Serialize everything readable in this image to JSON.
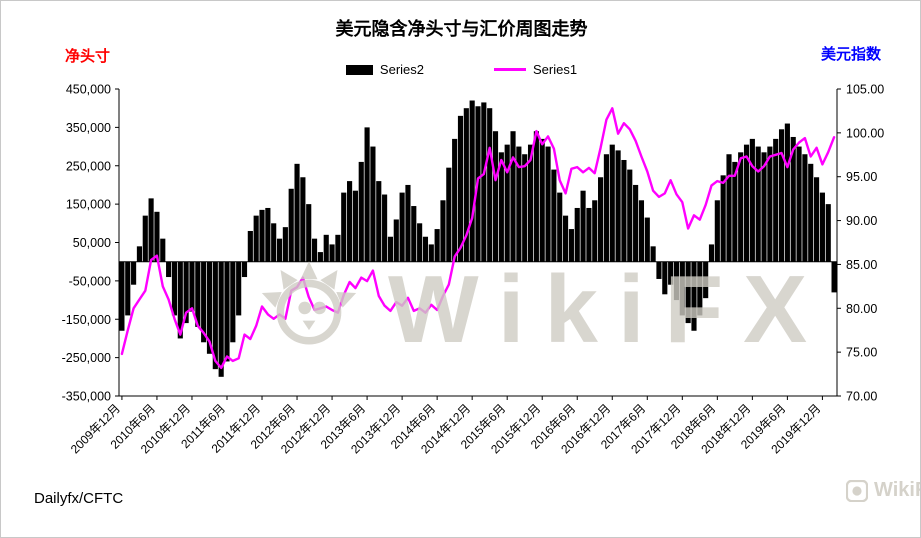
{
  "watermark": {
    "text": "WikiFX",
    "color": "#cfccc4"
  },
  "footer": {
    "source": "Dailyfx/CFTC"
  },
  "chart_data": {
    "type": "combo",
    "title": "美元隐含净头寸与汇价周图走势",
    "grid": false,
    "legend_position": "top-center",
    "left_axis": {
      "label": "净头寸",
      "color": "#ff0000",
      "ylim": [
        -350000,
        450000
      ],
      "tick_step": 100000,
      "tick_labels": [
        "450,000",
        "350,000",
        "250,000",
        "150,000",
        "50,000",
        "-50,000",
        "-150,000",
        "-250,000",
        "-350,000"
      ]
    },
    "right_axis": {
      "label": "美元指数",
      "color": "#0000ff",
      "ylim": [
        70,
        105
      ],
      "tick_step": 5,
      "tick_labels": [
        "105.00",
        "100.00",
        "95.00",
        "90.00",
        "85.00",
        "80.00",
        "75.00",
        "70.00"
      ]
    },
    "x": {
      "start": "2009-12",
      "frequency": "monthly",
      "count": 123,
      "tick_positions": [
        0,
        6,
        12,
        18,
        24,
        30,
        36,
        42,
        48,
        54,
        60,
        66,
        72,
        78,
        84,
        90,
        96,
        102,
        108,
        114,
        120
      ],
      "tick_labels": [
        "2009年12月",
        "2010年6月",
        "2010年12月",
        "2011年6月",
        "2011年12月",
        "2012年6月",
        "2012年12月",
        "2013年6月",
        "2013年12月",
        "2014年6月",
        "2014年12月",
        "2015年6月",
        "2015年12月",
        "2016年6月",
        "2016年12月",
        "2017年6月",
        "2017年12月",
        "2018年6月",
        "2018年12月",
        "2019年6月",
        "2019年12月"
      ]
    },
    "series": [
      {
        "name": "Series2",
        "type": "bar",
        "axis": "left",
        "color": "#000000",
        "values": [
          -180000,
          -140000,
          -60000,
          40000,
          120000,
          165000,
          130000,
          60000,
          -40000,
          -140000,
          -200000,
          -160000,
          -130000,
          -170000,
          -210000,
          -240000,
          -280000,
          -300000,
          -260000,
          -210000,
          -140000,
          -40000,
          80000,
          120000,
          135000,
          140000,
          100000,
          60000,
          90000,
          190000,
          255000,
          220000,
          150000,
          60000,
          25000,
          70000,
          45000,
          70000,
          180000,
          210000,
          185000,
          260000,
          350000,
          300000,
          210000,
          175000,
          65000,
          110000,
          180000,
          200000,
          145000,
          100000,
          65000,
          45000,
          85000,
          160000,
          245000,
          320000,
          380000,
          400000,
          420000,
          405000,
          415000,
          400000,
          340000,
          285000,
          305000,
          340000,
          300000,
          280000,
          305000,
          340000,
          320000,
          300000,
          240000,
          180000,
          120000,
          85000,
          140000,
          185000,
          140000,
          160000,
          220000,
          280000,
          305000,
          290000,
          265000,
          240000,
          200000,
          160000,
          115000,
          40000,
          -45000,
          -85000,
          -60000,
          -100000,
          -140000,
          -160000,
          -180000,
          -140000,
          -95000,
          45000,
          160000,
          225000,
          280000,
          260000,
          285000,
          305000,
          320000,
          300000,
          285000,
          300000,
          320000,
          345000,
          360000,
          325000,
          300000,
          280000,
          255000,
          220000,
          180000,
          150000,
          -80000
        ]
      },
      {
        "name": "Series1",
        "type": "line",
        "axis": "right",
        "color": "#ff00ff",
        "values": [
          74.8,
          77.5,
          80.0,
          81.0,
          82.0,
          85.5,
          86.0,
          82.5,
          81.0,
          78.8,
          77.0,
          79.5,
          80.0,
          78.0,
          77.2,
          76.2,
          74.0,
          73.2,
          74.5,
          74.0,
          74.3,
          77.0,
          76.5,
          78.0,
          80.2,
          79.3,
          78.8,
          79.3,
          78.8,
          82.0,
          82.4,
          83.5,
          81.3,
          79.8,
          80.0,
          80.2,
          79.8,
          79.5,
          81.5,
          83.0,
          82.3,
          83.5,
          83.1,
          84.3,
          81.4,
          80.3,
          79.7,
          80.7,
          80.3,
          81.2,
          79.7,
          80.0,
          79.5,
          80.4,
          79.8,
          81.4,
          82.7,
          85.9,
          86.9,
          88.3,
          90.3,
          94.8,
          95.3,
          98.3,
          94.6,
          96.9,
          95.5,
          97.2,
          96.1,
          96.2,
          96.9,
          100.2,
          98.7,
          99.6,
          98.2,
          94.6,
          93.1,
          95.9,
          96.1,
          95.5,
          96.0,
          95.4,
          98.3,
          101.5,
          102.8,
          99.9,
          101.1,
          100.4,
          99.1,
          97.3,
          95.6,
          93.4,
          92.7,
          93.1,
          94.6,
          93.0,
          92.1,
          89.1,
          90.6,
          90.1,
          91.8,
          94.0,
          94.5,
          94.3,
          95.1,
          95.1,
          97.1,
          97.3,
          96.2,
          95.6,
          96.2,
          97.3,
          97.5,
          97.7,
          96.1,
          98.1,
          98.9,
          99.4,
          97.3,
          98.3,
          96.4,
          97.8,
          99.5
        ]
      }
    ]
  }
}
